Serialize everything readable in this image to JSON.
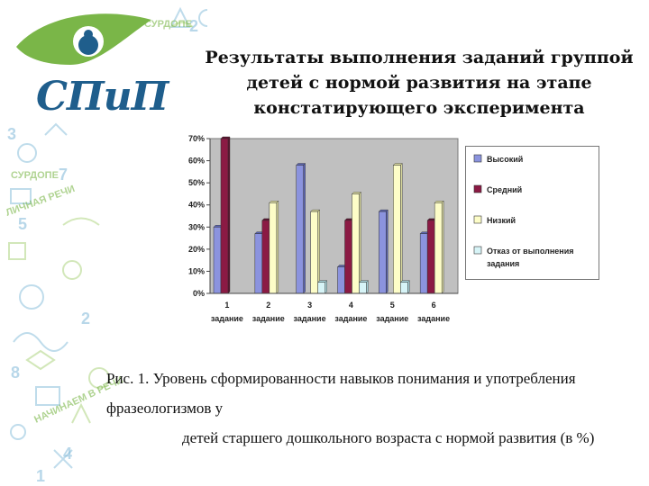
{
  "logo": {
    "text": "СПиП"
  },
  "deco": {
    "words": [
      "СУРДОПЕ",
      "ЛИЧНАЯ РЕЧИ",
      "СУРДОПЕ",
      "НАЧИНАЕМ В РЕЧИ"
    ]
  },
  "title": {
    "line1": "Результаты выполнения заданий группой",
    "line2": "детей с нормой развития на этапе",
    "line3": "констатирующего эксперимента"
  },
  "caption": {
    "line1": "Рис. 1.  Уровень сформированности навыков понимания и употребления фразеологизмов у",
    "line2": "детей старшего дошкольного возраста с нормой развития (в %)"
  },
  "colors": {
    "accent_green": "#7ab648",
    "brand_blue": "#1f5e8c",
    "plot_bg": "#c0c0c0",
    "series": [
      "#8b93de",
      "#8b1a44",
      "#fdfdc8",
      "#d7f4f7"
    ]
  },
  "chart_data": {
    "type": "bar",
    "categories": [
      [
        "1",
        "задание"
      ],
      [
        "2",
        "задание"
      ],
      [
        "3",
        "задание"
      ],
      [
        "4",
        "задание"
      ],
      [
        "5",
        "задание"
      ],
      [
        "6",
        "задание"
      ]
    ],
    "series": [
      {
        "name": "Высокий",
        "values": [
          30,
          27,
          58,
          12,
          37,
          27
        ]
      },
      {
        "name": "Средний",
        "values": [
          70,
          33,
          0,
          33,
          0,
          33
        ]
      },
      {
        "name": "Низкий",
        "values": [
          0,
          41,
          37,
          45,
          58,
          41
        ]
      },
      {
        "name": "Отказ от выполнения задания",
        "values": [
          0,
          0,
          5,
          5,
          5,
          0
        ]
      }
    ],
    "ylim": [
      0,
      70
    ],
    "yticks": [
      "0%",
      "10%",
      "20%",
      "30%",
      "40%",
      "50%",
      "60%",
      "70%"
    ],
    "grid": false,
    "legend_position": "right"
  }
}
